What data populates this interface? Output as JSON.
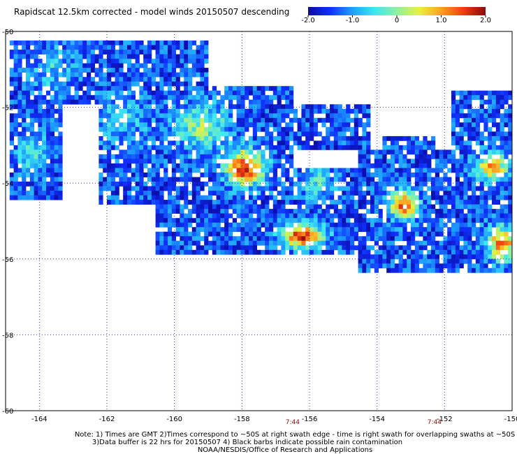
{
  "chart_data": {
    "type": "heatmap",
    "title": "Rapidscat 12.5km corrected - model winds 20150507 descending",
    "colorbar": {
      "min": -2.0,
      "max": 2.0,
      "tick_values": [
        -2.0,
        -1.0,
        0,
        1.0,
        2.0
      ],
      "tick_labels": [
        "-2.0",
        "-1.0",
        "0",
        "1.0",
        "2.0"
      ],
      "colors": [
        "#0a0a9e",
        "#1030ff",
        "#1ea0ff",
        "#3de8f0",
        "#8ef0a0",
        "#e8f040",
        "#ffa020",
        "#f03c10",
        "#8a0a0a"
      ]
    },
    "xlim": [
      -165,
      -150
    ],
    "ylim": [
      -60,
      -50
    ],
    "x_ticks": [
      -164,
      -162,
      -160,
      -158,
      -156,
      -154,
      -152,
      -150
    ],
    "x_tick_labels": [
      "-164",
      "-162",
      "-160",
      "-158",
      "-156",
      "-154",
      "-152",
      "-150"
    ],
    "y_ticks": [
      -50,
      -52,
      -54,
      -56,
      -58,
      -60
    ],
    "y_tick_labels": [
      "-50",
      "-52",
      "-54",
      "-56",
      "-58",
      "-60"
    ],
    "grid": true,
    "swath_times": [
      {
        "lon": -156.5,
        "label": "7:44"
      },
      {
        "lon": -152.3,
        "label": "7:44"
      }
    ],
    "fields": [
      {
        "lon": -157.9,
        "lat": -53.6,
        "amp": 3.2,
        "sx": 0.55,
        "sy": 0.45
      },
      {
        "lon": -156.2,
        "lat": -55.4,
        "amp": 3.0,
        "sx": 0.6,
        "sy": 0.3
      },
      {
        "lon": -153.2,
        "lat": -54.6,
        "amp": 3.0,
        "sx": 0.4,
        "sy": 0.35
      },
      {
        "lon": -150.6,
        "lat": -53.6,
        "amp": 2.4,
        "sx": 0.45,
        "sy": 0.35
      },
      {
        "lon": -150.3,
        "lat": -55.6,
        "amp": 2.6,
        "sx": 0.45,
        "sy": 0.45
      },
      {
        "lon": -159.2,
        "lat": -52.5,
        "amp": 1.4,
        "sx": 0.8,
        "sy": 0.6
      },
      {
        "lon": -161.6,
        "lat": -52.3,
        "amp": 0.8,
        "sx": 0.8,
        "sy": 0.6
      },
      {
        "lon": -164.2,
        "lat": -53.2,
        "amp": 0.8,
        "sx": 0.5,
        "sy": 0.6
      },
      {
        "lon": -163.6,
        "lat": -51.0,
        "amp": 0.7,
        "sx": 0.7,
        "sy": 0.6
      },
      {
        "lon": -155.8,
        "lat": -54.0,
        "amp": 1.0,
        "sx": 0.5,
        "sy": 0.4
      }
    ],
    "coverage": [
      {
        "lon0": -164.9,
        "lon1": -159.0,
        "lat0": -50.2,
        "lat1": -51.9
      },
      {
        "lon0": -164.9,
        "lon1": -163.3,
        "lat0": -51.9,
        "lat1": -54.4
      },
      {
        "lon0": -162.2,
        "lon1": -156.5,
        "lat0": -51.4,
        "lat1": -54.6
      },
      {
        "lon0": -160.5,
        "lon1": -154.5,
        "lat0": -53.6,
        "lat1": -55.9
      },
      {
        "lon0": -156.5,
        "lon1": -154.2,
        "lat0": -51.9,
        "lat1": -53.1
      },
      {
        "lon0": -154.6,
        "lon1": -150.0,
        "lat0": -53.1,
        "lat1": -56.3
      },
      {
        "lon0": -151.8,
        "lon1": -150.0,
        "lat0": -51.6,
        "lat1": -53.4
      },
      {
        "lon0": -153.8,
        "lon1": -152.3,
        "lat0": -52.8,
        "lat1": -53.6
      }
    ],
    "notes": [
      "Note: 1) Times are GMT 2)Times correspond to ~50S at right swath edge - time is right swath for overlapping swaths at ~50S",
      "3)Data buffer is 22 hrs for 20150507 4) Black barbs indicate possible rain contamination",
      "NOAA/NESDIS/Office of Research and Applications"
    ]
  }
}
